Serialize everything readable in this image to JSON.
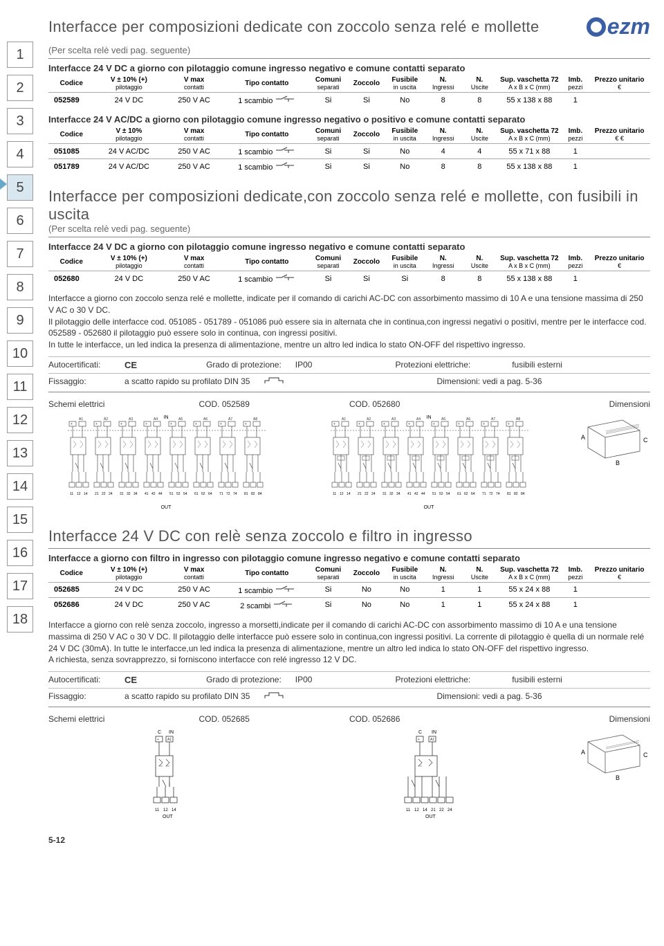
{
  "logo": {
    "text": "ezm",
    "color": "#3a5fa4"
  },
  "sidebar": {
    "numbers": [
      "1",
      "2",
      "3",
      "4",
      "5",
      "6",
      "7",
      "8",
      "9",
      "10",
      "11",
      "12",
      "13",
      "14",
      "15",
      "16",
      "17",
      "18"
    ],
    "active_index": 4
  },
  "section1": {
    "title": "Interfacce per composizioni dedicate con zoccolo senza relé e mollette",
    "subtitle": "(Per scelta relè vedi pag. seguente)",
    "table1": {
      "title": "Interfacce 24 V DC a giorno con pilotaggio comune ingresso negativo e comune contatti separato",
      "rows": [
        {
          "codice": "052589",
          "pilot": "24 V DC",
          "vmax": "250 V AC",
          "tipo": "1 scambio",
          "comuni": "Si",
          "zoccolo": "Si",
          "fusibile": "No",
          "ingressi": "8",
          "uscite": "8",
          "vaschetta": "55 x 138 x 88",
          "imb": "1",
          "prezzo": ""
        }
      ]
    },
    "table2": {
      "title": "Interfacce 24 V AC/DC a giorno con pilotaggio comune ingresso negativo o positivo e comune contatti separato",
      "pilot_header": "V ± 10%",
      "rows": [
        {
          "codice": "051085",
          "pilot": "24 V AC/DC",
          "vmax": "250 V AC",
          "tipo": "1 scambio",
          "comuni": "Si",
          "zoccolo": "Si",
          "fusibile": "No",
          "ingressi": "4",
          "uscite": "4",
          "vaschetta": "55 x  71 x 88",
          "imb": "1",
          "prezzo": ""
        },
        {
          "codice": "051789",
          "pilot": "24 V AC/DC",
          "vmax": "250 V AC",
          "tipo": "1 scambio",
          "comuni": "Si",
          "zoccolo": "Si",
          "fusibile": "No",
          "ingressi": "8",
          "uscite": "8",
          "vaschetta": "55 x 138 x 88",
          "imb": "1",
          "prezzo": ""
        }
      ],
      "price_symbol": "€ €"
    }
  },
  "section2": {
    "title": "Interfacce per composizioni dedicate,con zoccolo senza relé e mollette, con fusibili in uscita",
    "subtitle": "(Per scelta relè vedi pag. seguente)",
    "table": {
      "title": "Interfacce 24 V DC a giorno con pilotaggio comune ingresso negativo e comune contatti separato",
      "rows": [
        {
          "codice": "052680",
          "pilot": "24 V DC",
          "vmax": "250 V AC",
          "tipo": "1 scambio",
          "comuni": "Si",
          "zoccolo": "Si",
          "fusibile": "Si",
          "ingressi": "8",
          "uscite": "8",
          "vaschetta": "55 x 138 x 88",
          "imb": "1",
          "prezzo": ""
        }
      ]
    },
    "desc": "Interfacce a giorno con zoccolo senza relé e mollette, indicate per il comando di carichi AC-DC con assorbimento massimo di 10 A e una tensione massima di 250 V AC o 30 V DC.\nIl pilotaggio delle interfacce cod. 051085 - 051789 - 051086 può essere sia in alternata che in continua,con ingressi negativi o positivi, mentre per le interfacce cod. 052589 - 052680 il pilotaggio può essere solo in continua, con ingressi positivi.\nIn tutte le interfacce, un led indica la presenza di alimentazione, mentre un altro led indica lo stato ON-OFF del rispettivo ingresso.",
    "info": {
      "autocert": "Autocertificati:",
      "grado": "Grado di protezione:",
      "grado_val": "IP00",
      "protez": "Protezioni elettriche:",
      "protez_val": "fusibili esterni",
      "fissaggio": "Fissaggio:",
      "fissaggio_val": "a scatto rapido su profilato DIN 35",
      "dim": "Dimensioni: vedi a pag. 5-36"
    },
    "schematic": {
      "label": "Schemi elettrici",
      "cod1": "COD. 052589",
      "cod2": "COD. 052680",
      "dim": "Dimensioni",
      "in": "IN",
      "out": "OUT"
    }
  },
  "section3": {
    "title": "Interfacce 24 V DC con relè senza zoccolo e filtro in ingresso",
    "table": {
      "title": "Interfacce a giorno con filtro in ingresso con pilotaggio comune ingresso negativo e comune contatti separato",
      "rows": [
        {
          "codice": "052685",
          "pilot": "24 V DC",
          "vmax": "250 V AC",
          "tipo": "1 scambio",
          "comuni": "Si",
          "zoccolo": "No",
          "fusibile": "No",
          "ingressi": "1",
          "uscite": "1",
          "vaschetta": "55 x  24 x 88",
          "imb": "1",
          "prezzo": ""
        },
        {
          "codice": "052686",
          "pilot": "24 V DC",
          "vmax": "250 V AC",
          "tipo": "2 scambi",
          "comuni": "Si",
          "zoccolo": "No",
          "fusibile": "No",
          "ingressi": "1",
          "uscite": "1",
          "vaschetta": "55 x  24 x 88",
          "imb": "1",
          "prezzo": ""
        }
      ]
    },
    "desc": "Interfacce a giorno con relè senza zoccolo, ingresso a morsetti,indicate per il comando di carichi AC-DC con assorbimento massimo di 10 A e una tensione massima di 250 V AC o 30 V DC. Il pilotaggio delle interfacce può essere solo in continua,con ingressi positivi. La corrente di pilotaggio è quella di un normale relé 24 V DC (30mA). In tutte le interfacce,un led indica la presenza di alimentazione, mentre un altro led indica lo stato ON-OFF del rispettivo ingresso.\nA richiesta, senza sovrapprezzo, si forniscono interfacce con relé ingresso 12 V DC.",
    "info": {
      "autocert": "Autocertificati:",
      "grado": "Grado di protezione:",
      "grado_val": "IP00",
      "protez": "Protezioni elettriche:",
      "protez_val": "fusibili esterni",
      "fissaggio": "Fissaggio:",
      "fissaggio_val": "a scatto rapido su profilato DIN 35",
      "dim": "Dimensioni: vedi a pag. 5-36"
    },
    "schematic": {
      "label": "Schemi elettrici",
      "cod1": "COD. 052685",
      "cod2": "COD. 052686",
      "dim": "Dimensioni",
      "in": "IN",
      "out": "OUT",
      "c_label": "C"
    }
  },
  "columns": {
    "codice": "Codice",
    "pilot": "V ± 10% (+)",
    "pilot_sub": "pilotaggio",
    "vmax": "V max",
    "vmax_sub": "contatti",
    "tipo": "Tipo contatto",
    "comuni": "Comuni",
    "comuni_sub": "separati",
    "zoccolo": "Zoccolo",
    "fusibile": "Fusibile",
    "fusibile_sub": "in uscita",
    "ingressi": "N.",
    "ingressi_sub": "Ingressi",
    "uscite": "N.",
    "uscite_sub": "Uscite",
    "vaschetta": "Sup. vaschetta 72",
    "vaschetta_sub": "A x B x C (mm)",
    "imb": "Imb.",
    "imb_sub": "pezzi",
    "prezzo": "Prezzo unitario",
    "prezzo_sym": "€"
  },
  "dim_labels": {
    "a": "A",
    "b": "B",
    "c": "C"
  },
  "footer": "5-12",
  "styling": {
    "title_color": "#555",
    "border_color": "#aaa",
    "sidenum_border": "#999",
    "logo_color": "#3a5fa4",
    "active_bg": "#d9e8f0",
    "title_fontsize": 22,
    "table_fontsize": 11,
    "header_fontsize": 10
  }
}
